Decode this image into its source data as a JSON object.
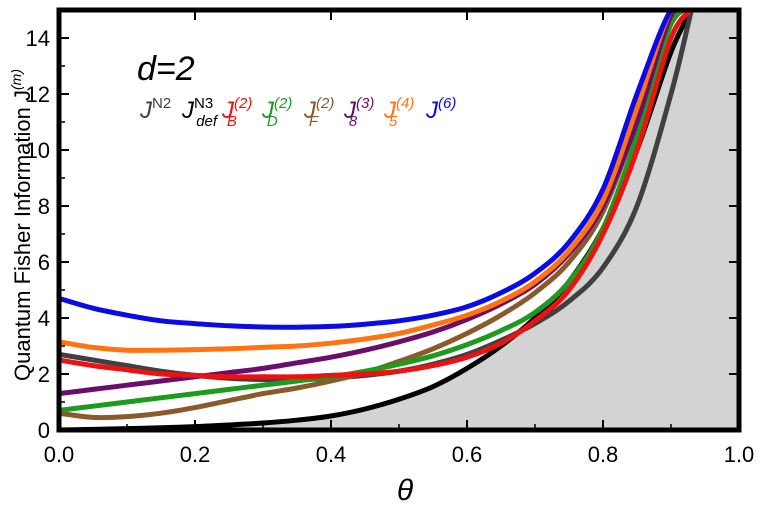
{
  "chart_data": {
    "type": "line",
    "title": "",
    "xlabel": "θ",
    "ylabel": "Quantum Fisher Information J",
    "ylabel_sup": "(m)",
    "xlim": [
      0.0,
      1.0
    ],
    "ylim": [
      0,
      15
    ],
    "x_ticks": [
      "0.0",
      "0.2",
      "0.4",
      "0.6",
      "0.8",
      "1.0"
    ],
    "y_ticks": [
      "0",
      "2",
      "4",
      "6",
      "8",
      "10",
      "12",
      "14"
    ],
    "annotation": "d=2",
    "shaded_region": {
      "description": "gray region below the J^N3_def curve",
      "color": "#d3d3d3"
    },
    "x": [
      0.0,
      0.05,
      0.1,
      0.15,
      0.2,
      0.25,
      0.3,
      0.35,
      0.4,
      0.45,
      0.5,
      0.55,
      0.6,
      0.65,
      0.7,
      0.75,
      0.8,
      0.85,
      0.9,
      0.93
    ],
    "series": [
      {
        "name": "J^N2",
        "base": "J",
        "sup": "N2",
        "sub": "",
        "color": "#404040",
        "values": [
          2.7,
          2.5,
          2.3,
          2.1,
          1.95,
          1.85,
          1.8,
          1.8,
          1.85,
          1.95,
          2.1,
          2.35,
          2.7,
          3.2,
          3.8,
          4.6,
          5.8,
          8.0,
          12.0,
          15.0
        ]
      },
      {
        "name": "J^N3_def",
        "base": "J",
        "sup": "N3",
        "sub": "def",
        "color": "#000000",
        "values": [
          0.0,
          0.02,
          0.05,
          0.08,
          0.12,
          0.18,
          0.25,
          0.35,
          0.5,
          0.75,
          1.1,
          1.55,
          2.2,
          3.0,
          4.0,
          5.3,
          7.2,
          10.0,
          13.5,
          15.0
        ]
      },
      {
        "name": "J_B^(2)",
        "base": "J",
        "sup": "(2)",
        "sub": "B",
        "color": "#ee1111",
        "values": [
          2.5,
          2.3,
          2.15,
          2.0,
          1.95,
          1.9,
          1.9,
          1.9,
          1.95,
          2.0,
          2.1,
          2.3,
          2.6,
          3.1,
          3.9,
          5.0,
          7.0,
          10.0,
          14.0,
          15.0
        ]
      },
      {
        "name": "J_D^(2)",
        "base": "J",
        "sup": "(2)",
        "sub": "D",
        "color": "#1e9b1e",
        "values": [
          0.7,
          0.85,
          1.0,
          1.15,
          1.3,
          1.45,
          1.6,
          1.75,
          1.9,
          2.1,
          2.35,
          2.65,
          3.05,
          3.55,
          4.2,
          5.3,
          7.2,
          10.5,
          14.5,
          15.0
        ]
      },
      {
        "name": "J_F^(2)",
        "base": "J",
        "sup": "(2)",
        "sub": "F",
        "color": "#8b5a2b",
        "values": [
          0.6,
          0.45,
          0.48,
          0.6,
          0.8,
          1.05,
          1.3,
          1.5,
          1.75,
          2.05,
          2.45,
          2.9,
          3.45,
          4.1,
          4.9,
          6.0,
          7.8,
          11.0,
          14.5,
          15.0
        ]
      },
      {
        "name": "J_8^(3)",
        "base": "J",
        "sup": "(3)",
        "sub": "8",
        "color": "#6b0e6b",
        "values": [
          1.3,
          1.45,
          1.6,
          1.75,
          1.9,
          2.05,
          2.2,
          2.4,
          2.6,
          2.85,
          3.15,
          3.5,
          3.95,
          4.5,
          5.2,
          6.3,
          8.0,
          11.0,
          14.8,
          15.0
        ]
      },
      {
        "name": "J_5^(4)",
        "base": "J",
        "sup": "(4)",
        "sub": "5",
        "color": "#ff7311",
        "values": [
          3.15,
          2.95,
          2.85,
          2.85,
          2.87,
          2.9,
          2.95,
          3.0,
          3.1,
          3.25,
          3.45,
          3.75,
          4.1,
          4.6,
          5.3,
          6.4,
          8.2,
          11.5,
          15.0,
          15.0
        ]
      },
      {
        "name": "J^(6)",
        "base": "J",
        "sup": "(6)",
        "sub": "",
        "color": "#0b0be5",
        "values": [
          4.7,
          4.35,
          4.1,
          3.9,
          3.8,
          3.72,
          3.68,
          3.67,
          3.7,
          3.78,
          3.9,
          4.1,
          4.4,
          4.9,
          5.6,
          6.7,
          8.6,
          12.0,
          15.0,
          15.0
        ]
      }
    ]
  }
}
